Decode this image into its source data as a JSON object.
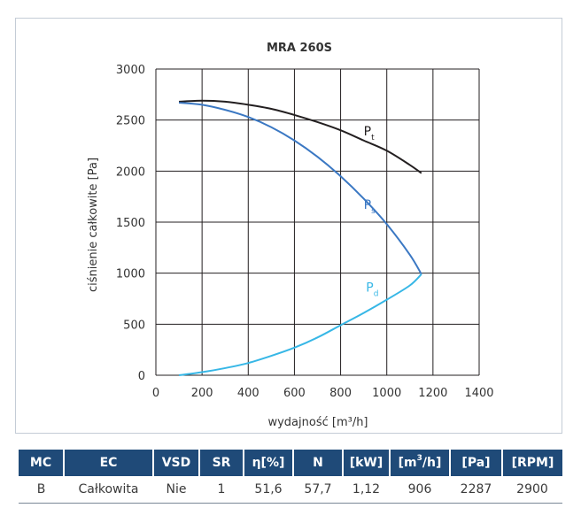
{
  "chart_data": {
    "type": "line",
    "title": "MRA 260S",
    "xlabel": "wydajność [m³/h]",
    "ylabel": "ciśnienie całkowite [Pa]",
    "xlim": [
      0,
      1400
    ],
    "ylim": [
      0,
      3000
    ],
    "x_ticks": [
      0,
      200,
      400,
      600,
      800,
      1000,
      1200,
      1400
    ],
    "y_ticks": [
      0,
      500,
      1000,
      1500,
      2000,
      2500,
      3000
    ],
    "grid": true,
    "series": [
      {
        "name": "Pt",
        "label_main": "P",
        "label_sub": "t",
        "color": "#231f20",
        "points": [
          [
            100,
            2680
          ],
          [
            200,
            2690
          ],
          [
            300,
            2680
          ],
          [
            400,
            2650
          ],
          [
            500,
            2610
          ],
          [
            600,
            2550
          ],
          [
            700,
            2480
          ],
          [
            800,
            2400
          ],
          [
            900,
            2300
          ],
          [
            1000,
            2200
          ],
          [
            1100,
            2060
          ],
          [
            1150,
            1980
          ]
        ]
      },
      {
        "name": "Ps",
        "label_main": "P",
        "label_sub": "s",
        "color": "#3b78c3",
        "points": [
          [
            100,
            2670
          ],
          [
            200,
            2650
          ],
          [
            300,
            2600
          ],
          [
            400,
            2530
          ],
          [
            500,
            2430
          ],
          [
            600,
            2300
          ],
          [
            700,
            2140
          ],
          [
            800,
            1950
          ],
          [
            900,
            1730
          ],
          [
            1000,
            1480
          ],
          [
            1100,
            1180
          ],
          [
            1150,
            990
          ]
        ]
      },
      {
        "name": "Pd",
        "label_main": "P",
        "label_sub": "d",
        "color": "#37b7e6",
        "points": [
          [
            100,
            0
          ],
          [
            200,
            30
          ],
          [
            300,
            70
          ],
          [
            400,
            120
          ],
          [
            500,
            190
          ],
          [
            600,
            270
          ],
          [
            700,
            370
          ],
          [
            800,
            490
          ],
          [
            900,
            610
          ],
          [
            1000,
            740
          ],
          [
            1100,
            880
          ],
          [
            1150,
            990
          ]
        ]
      }
    ]
  },
  "table": {
    "headers": [
      {
        "text": "MC",
        "sup": ""
      },
      {
        "text": "EC",
        "sup": ""
      },
      {
        "text": "VSD",
        "sup": ""
      },
      {
        "text": "SR",
        "sup": ""
      },
      {
        "text": "η[%]",
        "sup": ""
      },
      {
        "text": "N",
        "sup": ""
      },
      {
        "text": "[kW]",
        "sup": ""
      },
      {
        "text": "[m",
        "sup": "3",
        "after": "/h]"
      },
      {
        "text": "[Pa]",
        "sup": ""
      },
      {
        "text": "[RPM]",
        "sup": ""
      }
    ],
    "row": [
      "B",
      "Całkowita",
      "Nie",
      "1",
      "51,6",
      "57,7",
      "1,12",
      "906",
      "2287",
      "2900"
    ],
    "header_color": "#1f4a78"
  }
}
